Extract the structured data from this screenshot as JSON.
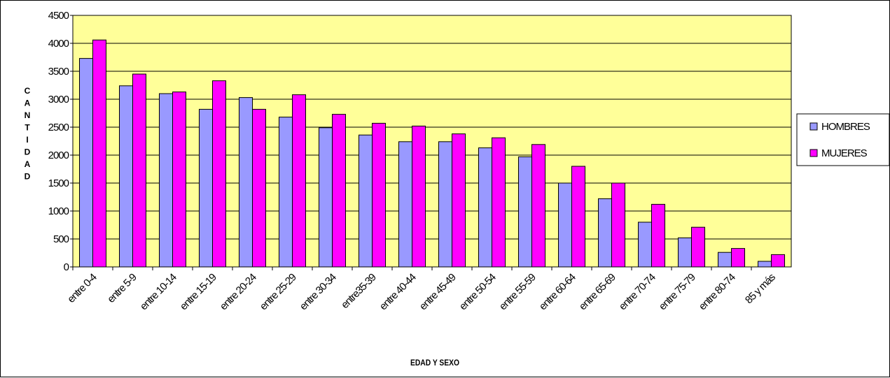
{
  "chart_data": {
    "type": "bar",
    "title": "",
    "xlabel": "EDAD Y SEXO",
    "ylabel": "CANTIDAD",
    "ylim": [
      0,
      4500
    ],
    "yticks": [
      "0",
      "500",
      "1000",
      "1500",
      "2000",
      "2500",
      "3000",
      "3500",
      "4000",
      "4500"
    ],
    "grid": true,
    "legend_position": "right",
    "plot_background": "#FFFF99",
    "categories": [
      "entre 0-4",
      "entre 5-9",
      "entre 10-14",
      "entre 15-19",
      "entre 20-24",
      "entre 25-29",
      "entre 30-34",
      "entre35-39",
      "entre 40-44",
      "entre 45-49",
      "entre 50-54",
      "entre 55-59",
      "entre 60-64",
      "entre 65-69",
      "entre 70-74",
      "entre 75-79",
      "entre 80-74",
      "85  y más"
    ],
    "series": [
      {
        "name": "HOMBRES",
        "color": "#9999FF",
        "values": [
          3730,
          3240,
          3100,
          2820,
          3030,
          2680,
          2490,
          2360,
          2240,
          2240,
          2130,
          1970,
          1500,
          1220,
          800,
          520,
          260,
          100
        ]
      },
      {
        "name": "MUJERES",
        "color": "#FF00FF",
        "values": [
          4060,
          3450,
          3130,
          3330,
          2820,
          3080,
          2730,
          2570,
          2520,
          2380,
          2310,
          2190,
          1800,
          1500,
          1120,
          710,
          330,
          220
        ]
      }
    ]
  }
}
